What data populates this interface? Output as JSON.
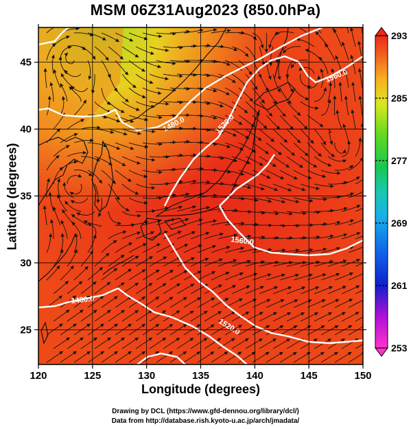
{
  "title": "MSM 06Z31Aug2023 (850.0hPa)",
  "x_axis": {
    "label": "Longitude (degrees)",
    "ticks": [
      "120",
      "125",
      "130",
      "135",
      "140",
      "145",
      "150"
    ],
    "range": [
      120,
      150
    ]
  },
  "y_axis": {
    "label": "Latitude  (degrees)",
    "ticks": [
      "25",
      "30",
      "35",
      "40",
      "45"
    ],
    "range": [
      22.4,
      47.6
    ]
  },
  "colorbar": {
    "ticks": [
      "293",
      "285",
      "277",
      "269",
      "261",
      "253"
    ],
    "range": [
      253,
      293
    ]
  },
  "contour_labels": [
    "1480.0",
    "1520.0",
    "1560.0",
    "1560.0",
    "1480.0",
    "1520.0"
  ],
  "credits": [
    "Drawing by DCL (https://www.gfd-dennou.org/library/dcl/)",
    "Data from http://database.rish.kyoto-u.ac.jp/arch/jmadata/"
  ],
  "colors": {
    "warm_field": "#ee3e14",
    "contour": "#ffffff",
    "streamline": "#111111"
  }
}
